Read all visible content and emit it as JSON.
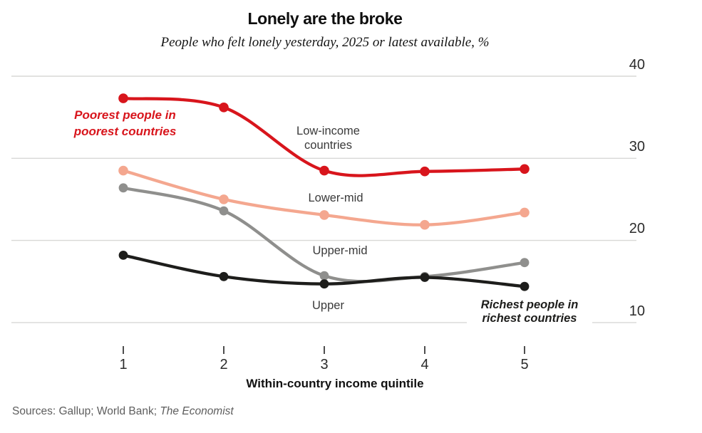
{
  "chart_data": {
    "type": "line",
    "title": "Lonely are the broke",
    "subtitle": "People who felt lonely yesterday, 2025 or latest available, %",
    "unit": "%",
    "x": [
      "1",
      "2",
      "3",
      "4",
      "5"
    ],
    "xlabel": "Within-country income quintile",
    "yticks": [
      "40",
      "30",
      "20",
      "10"
    ],
    "ylim": [
      10,
      40
    ],
    "grid": "horizontal",
    "ytick_side": "right",
    "legend_position": "inline-labels",
    "series": [
      {
        "name": "Low-income countries",
        "label_lines": [
          "Low-income",
          "countries"
        ],
        "color": "#d8151c",
        "values": [
          37.3,
          36.2,
          28.5,
          28.4,
          28.7
        ]
      },
      {
        "name": "Lower-mid",
        "label_lines": [
          "Lower-mid"
        ],
        "color": "#f4a78f",
        "values": [
          28.5,
          25.0,
          23.1,
          21.9,
          23.4
        ]
      },
      {
        "name": "Upper-mid",
        "label_lines": [
          "Upper-mid"
        ],
        "color": "#8f8f8d",
        "values": [
          26.4,
          23.6,
          15.7,
          15.6,
          17.3
        ]
      },
      {
        "name": "Upper",
        "label_lines": [
          "Upper"
        ],
        "color": "#1d1d1b",
        "values": [
          18.2,
          15.6,
          14.7,
          15.5,
          14.4
        ]
      }
    ],
    "annotations": [
      {
        "line1": "Poorest people in",
        "line2": "poorest countries",
        "color": "#d8151c"
      },
      {
        "line1": "Richest people in",
        "line2": "richest countries",
        "color": "#1d1d1b"
      }
    ]
  },
  "footer": {
    "sources_prefix": "Sources: Gallup; World Bank; ",
    "sources_italic": "The Economist"
  }
}
